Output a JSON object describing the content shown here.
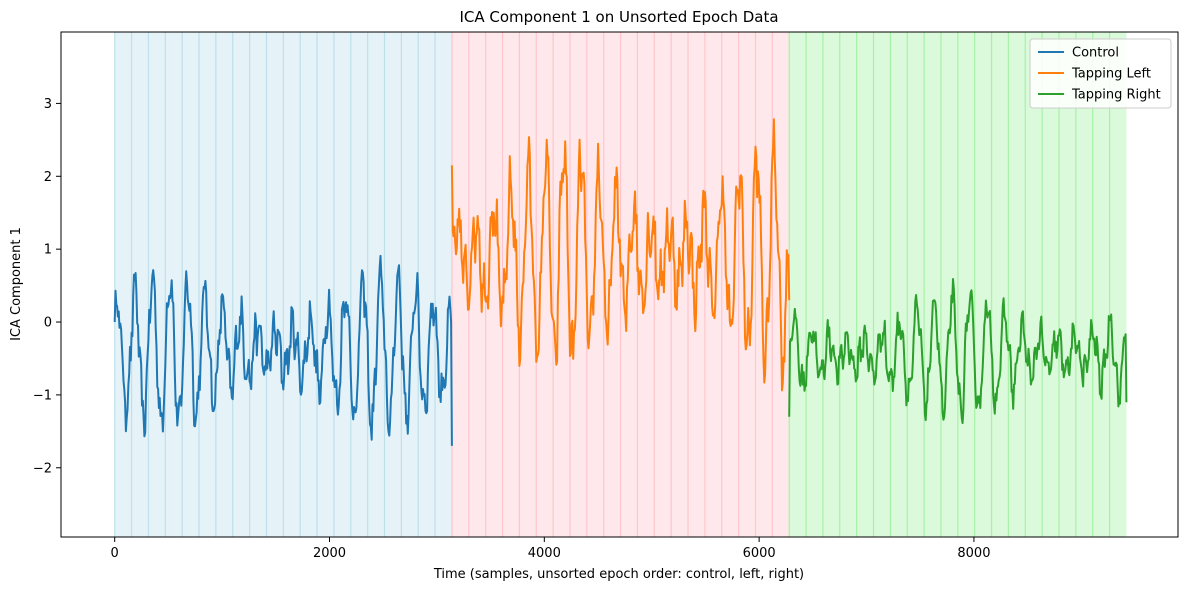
{
  "chart_data": {
    "type": "line",
    "title": "ICA Component 1 on Unsorted Epoch Data",
    "xlabel": "Time (samples, unsorted epoch order: control, left, right)",
    "ylabel": "ICA Component 1",
    "xlim": [
      -500,
      9900
    ],
    "ylim": [
      -2.95,
      3.98
    ],
    "xticks": [
      0,
      2000,
      4000,
      6000,
      8000
    ],
    "yticks": [
      -2,
      -1,
      0,
      1,
      2,
      3
    ],
    "ytick_labels": [
      "−2",
      "−1",
      "0",
      "1",
      "2",
      "3"
    ],
    "grid": false,
    "legend_position": "top-right",
    "series": [
      {
        "name": "Control",
        "color": "#1f77b4",
        "range": [
          0,
          3140
        ],
        "baseline": -0.4,
        "amplitude": 0.85,
        "start": 0.0,
        "end": -1.7
      },
      {
        "name": "Tapping Left",
        "color": "#ff7f0e",
        "range": [
          3140,
          6280
        ],
        "baseline": 0.9,
        "amplitude": 1.2,
        "start": 2.15,
        "end": 0.3
      },
      {
        "name": "Tapping Right",
        "color": "#2ca02c",
        "range": [
          6280,
          9420
        ],
        "baseline": -0.45,
        "amplitude": 0.65,
        "start": -1.3,
        "end": -1.1
      }
    ],
    "epoch_shading": [
      {
        "range": [
          0,
          3140
        ],
        "fill": "#add8e6",
        "line": "#add8e6"
      },
      {
        "range": [
          3140,
          6280
        ],
        "fill": "#ffb6c1",
        "line": "#ffb6c1"
      },
      {
        "range": [
          6280,
          9420
        ],
        "fill": "#90ee90",
        "line": "#90ee90"
      }
    ],
    "epoch_length": 157
  }
}
